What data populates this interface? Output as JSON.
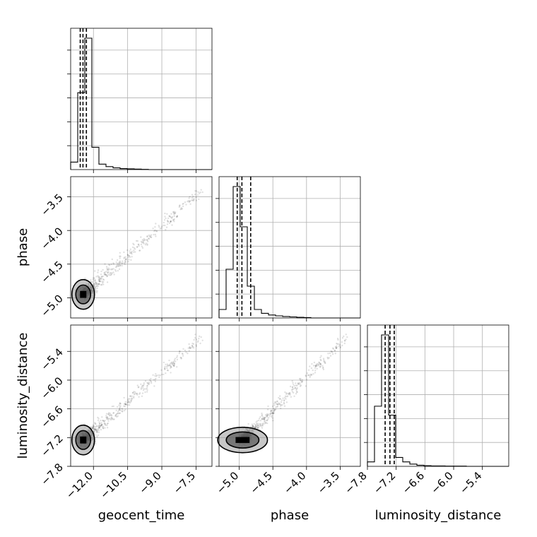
{
  "chart_data": {
    "type": "corner",
    "parameters": [
      "geocent_time",
      "phase",
      "luminosity_distance"
    ],
    "axis_labels": {
      "geocent_time": "geocent_time",
      "phase": "phase",
      "luminosity_distance": "luminosity_distance"
    },
    "ranges": {
      "geocent_time": [
        -13.0,
        -6.8
      ],
      "phase": [
        -5.3,
        -3.2
      ],
      "luminosity_distance": [
        -7.8,
        -4.85
      ]
    },
    "ticks": {
      "geocent_time": [
        -12.0,
        -10.5,
        -9.0,
        -7.5
      ],
      "phase": [
        -5.0,
        -4.5,
        -4.0,
        -3.5
      ],
      "luminosity_distance": [
        -7.8,
        -7.2,
        -6.6,
        -6.0,
        -5.4
      ]
    },
    "tick_labels": {
      "geocent_time": [
        "−12.0",
        "−10.5",
        "−9.0",
        "−7.5"
      ],
      "phase": [
        "−5.0",
        "−4.5",
        "−4.0",
        "−3.5"
      ],
      "luminosity_distance": [
        "−7.8",
        "−7.2",
        "−6.6",
        "−6.0",
        "−5.4"
      ]
    },
    "histograms": {
      "geocent_time": {
        "edges": [
          -13.0,
          -12.69,
          -12.38,
          -12.07,
          -11.76,
          -11.45,
          -11.14,
          -10.83,
          -10.52,
          -10.21,
          -9.9,
          -9.59,
          -9.28,
          -8.97,
          -8.66,
          -8.35,
          -8.04,
          -7.73,
          -7.42,
          -7.11,
          -6.8
        ],
        "counts": [
          30,
          310,
          530,
          90,
          22,
          12,
          7,
          4,
          3,
          2,
          1,
          0,
          0,
          0,
          0,
          0,
          0,
          0,
          0,
          0
        ],
        "quantiles": [
          -12.58,
          -12.46,
          -12.31
        ]
      },
      "phase": {
        "edges": [
          -5.3,
          -5.195,
          -5.09,
          -4.985,
          -4.88,
          -4.775,
          -4.67,
          -4.565,
          -4.46,
          -4.355,
          -4.25,
          -4.145,
          -4.04,
          -3.935,
          -3.83,
          -3.725,
          -3.62,
          -3.515,
          -3.41,
          -3.305,
          -3.2
        ],
        "counts": [
          40,
          230,
          620,
          430,
          150,
          40,
          22,
          14,
          10,
          7,
          5,
          3,
          2,
          0,
          0,
          0,
          0,
          0,
          0,
          0
        ],
        "quantiles": [
          -5.03,
          -4.96,
          -4.83
        ]
      },
      "luminosity_distance": {
        "edges": [
          -7.8,
          -7.6525,
          -7.505,
          -7.3575,
          -7.21,
          -7.0625,
          -6.915,
          -6.7675,
          -6.62,
          -6.4725,
          -6.325,
          -6.1775,
          -6.03,
          -5.8825,
          -5.735,
          -5.5875,
          -5.44,
          -5.2925,
          -5.145,
          -4.9975,
          -4.85
        ],
        "counts": [
          20,
          270,
          590,
          230,
          40,
          20,
          10,
          5,
          3,
          2,
          2,
          1,
          1,
          1,
          0,
          0,
          0,
          0,
          0,
          0
        ],
        "quantiles": [
          -7.43,
          -7.33,
          -7.24
        ]
      }
    },
    "scatter": {
      "n_points": 900,
      "center": {
        "geocent_time": -12.45,
        "phase": -4.95,
        "luminosity_distance": -7.25
      },
      "tail_end": {
        "geocent_time": -7.2,
        "phase": -3.4,
        "luminosity_distance": -5.1
      }
    },
    "grid": true,
    "legend": "none"
  }
}
